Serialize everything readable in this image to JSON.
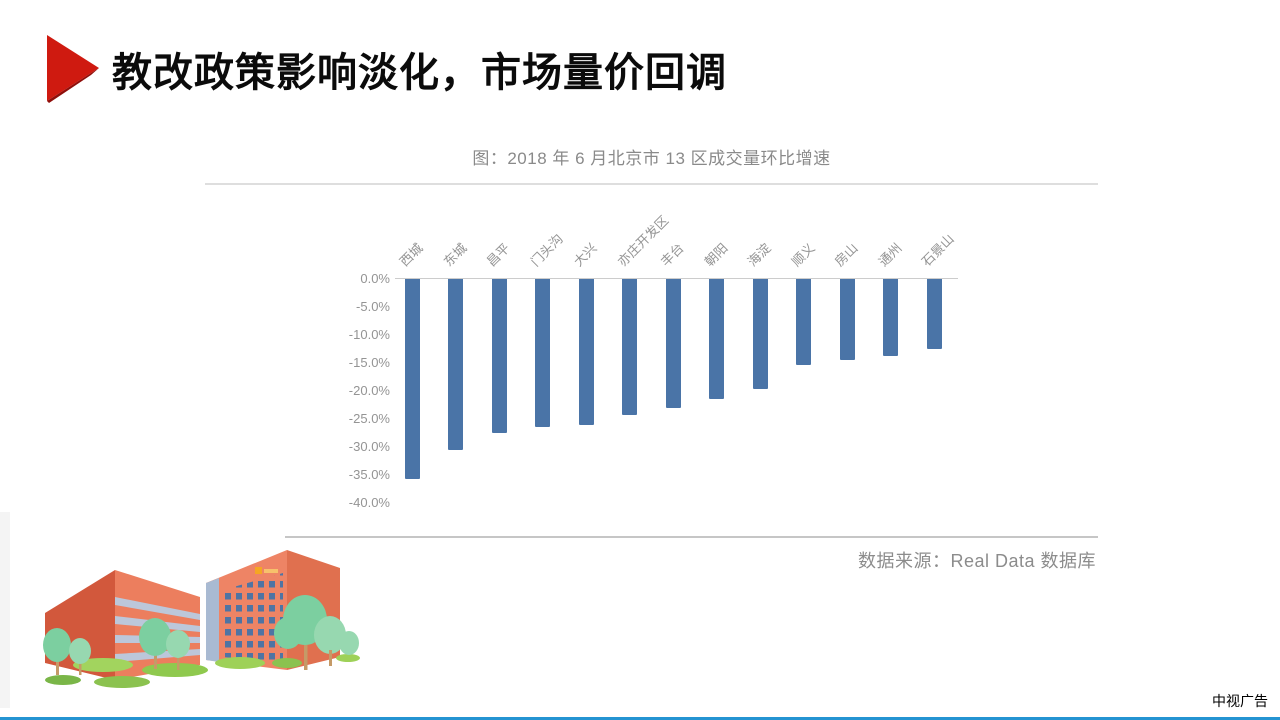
{
  "slide": {
    "title": "教改政策影响淡化，市场量价回调",
    "footer": "中视广告",
    "accent_red": "#cf1a10",
    "accent_red_dark": "#8f0e0a",
    "bottom_line_color": "#2494d2"
  },
  "chart_data": {
    "type": "bar",
    "title": "图：2018 年 6 月北京市 13 区成交量环比增速",
    "source": "数据来源：Real Data 数据库",
    "categories": [
      "西城",
      "东城",
      "昌平",
      "门头沟",
      "大兴",
      "亦庄开发区",
      "丰台",
      "朝阳",
      "海淀",
      "顺义",
      "房山",
      "通州",
      "石景山"
    ],
    "values": [
      -35.8,
      -30.6,
      -27.5,
      -26.4,
      -26.0,
      -24.2,
      -23.1,
      -21.5,
      -19.7,
      -15.3,
      -14.5,
      -13.8,
      -12.5
    ],
    "unit": "%",
    "xlabel": "",
    "ylabel": "",
    "ylim": [
      -40,
      0
    ],
    "yticks": [
      "0.0%",
      "-5.0%",
      "-10.0%",
      "-15.0%",
      "-20.0%",
      "-25.0%",
      "-30.0%",
      "-35.0%",
      "-40.0%"
    ],
    "grid": "off",
    "legend": "none",
    "bar_color": "#4a74a7",
    "axis_text_color": "#949494"
  }
}
